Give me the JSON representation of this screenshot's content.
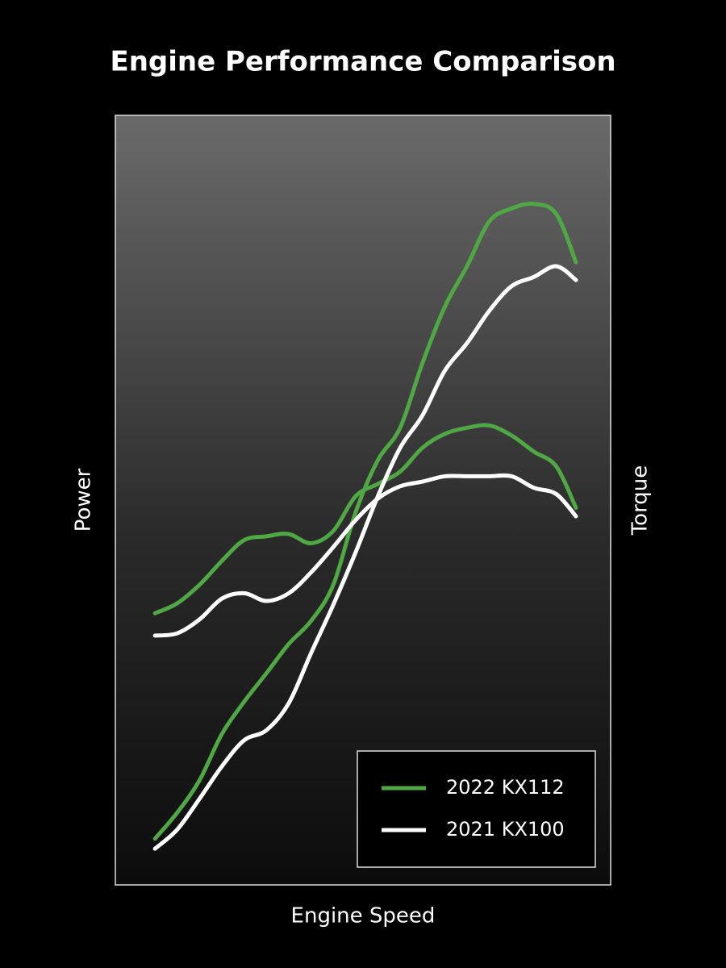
{
  "chart_data": {
    "type": "line",
    "title": "Engine Performance Comparison",
    "x_label": "Engine Speed",
    "y_label": "Power",
    "y2_label": "Torque",
    "x": [
      8,
      12.5,
      17,
      21.5,
      26,
      30.5,
      35,
      39.5,
      44,
      48.5,
      53,
      57.5,
      62,
      66.5,
      71,
      75.5,
      80,
      84.5,
      89,
      93
    ],
    "xlim": [
      0,
      100
    ],
    "ylim": [
      0,
      100
    ],
    "y2lim": [
      0,
      100
    ],
    "series": [
      {
        "name": "2022  KX112",
        "color": "#4fa843",
        "values": [
          6.0,
          9.4,
          13.6,
          19.6,
          23.8,
          27.5,
          31.3,
          34.3,
          39.0,
          48.4,
          55.2,
          59.4,
          67.8,
          75.1,
          80.4,
          86.2,
          87.9,
          88.5,
          87.2,
          80.9
        ],
        "y2_values": [
          35.3,
          36.6,
          39.0,
          42.1,
          44.8,
          45.3,
          45.6,
          44.4,
          46.0,
          50.5,
          52.1,
          53.7,
          56.8,
          58.6,
          59.4,
          59.7,
          58.4,
          56.3,
          54.4,
          49.0
        ]
      },
      {
        "name": "2021  KX100",
        "color": "#ffffff",
        "values": [
          4.7,
          7.2,
          11.2,
          15.4,
          18.8,
          20.1,
          23.6,
          30.1,
          36.4,
          43.2,
          50.5,
          56.8,
          61.0,
          66.8,
          70.4,
          74.6,
          77.8,
          79.0,
          80.4,
          78.6
        ],
        "y2_values": [
          32.4,
          32.7,
          34.5,
          37.2,
          37.9,
          36.9,
          37.9,
          40.6,
          43.9,
          47.4,
          50.2,
          51.8,
          52.4,
          53.1,
          53.1,
          53.1,
          53.1,
          51.6,
          50.8,
          47.9
        ]
      }
    ],
    "legend": "lower right"
  }
}
